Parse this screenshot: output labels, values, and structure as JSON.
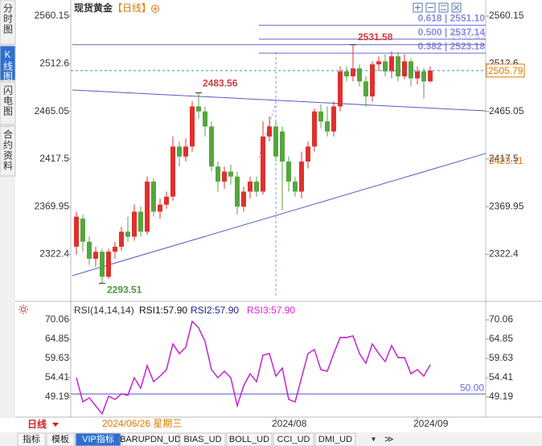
{
  "ui": {
    "sidebar": [
      "分时图",
      "K线图",
      "闪电图",
      "合约资料"
    ],
    "active_sidebar": 1,
    "period_button": "日线",
    "crosshair_date": "2024/06/26 星期三",
    "tabs": [
      "指标",
      "模板",
      "VIP指标",
      "BARUPDN_UD",
      "BIAS_UD",
      "BOLL_UD",
      "CCI_UD",
      "DMI_UD"
    ],
    "active_tab": 2
  },
  "chart_data": [
    {
      "type": "candlestick",
      "title": "现货黄金",
      "subtitle": "【日线】",
      "categories": [
        null,
        null,
        null,
        null,
        null,
        null,
        null,
        null,
        null,
        null,
        null,
        null,
        null,
        null,
        null,
        null,
        null,
        null,
        null,
        null,
        null,
        null,
        null,
        null,
        null,
        null,
        null,
        null,
        null,
        null,
        null,
        "2024/08",
        null,
        null,
        null,
        null,
        null,
        null,
        null,
        null,
        null,
        null,
        null,
        null,
        null,
        null,
        null,
        null,
        null,
        null,
        null,
        null,
        null,
        "2024/09",
        null,
        null
      ],
      "open": [
        2330,
        2358,
        2335,
        2318,
        2325,
        2300,
        2325,
        2330,
        2345,
        2340,
        2365,
        2345,
        2395,
        2365,
        2372,
        2380,
        2430,
        2420,
        2430,
        2470,
        2465,
        2450,
        2410,
        2395,
        2405,
        2400,
        2370,
        2385,
        2395,
        2385,
        2440,
        2450,
        2445,
        2415,
        2395,
        2385,
        2415,
        2430,
        2465,
        2455,
        2445,
        2470,
        2505,
        2500,
        2508,
        2495,
        2480,
        2512,
        2515,
        2505,
        2520,
        2500,
        2515,
        2498,
        2505,
        2495
      ],
      "high": [
        2365,
        2362,
        2340,
        2330,
        2328,
        2328,
        2335,
        2350,
        2360,
        2372,
        2370,
        2400,
        2398,
        2378,
        2385,
        2440,
        2435,
        2438,
        2475,
        2483.56,
        2470,
        2455,
        2415,
        2410,
        2412,
        2405,
        2390,
        2400,
        2400,
        2455,
        2460,
        2455,
        2450,
        2420,
        2400,
        2425,
        2435,
        2468,
        2472,
        2470,
        2475,
        2510,
        2510,
        2531.58,
        2512,
        2500,
        2515,
        2520,
        2522,
        2525,
        2524,
        2522,
        2518,
        2510,
        2508,
        2510
      ],
      "low": [
        2322,
        2325,
        2312,
        2310,
        2293.51,
        2298,
        2318,
        2326,
        2335,
        2336,
        2340,
        2342,
        2360,
        2358,
        2368,
        2376,
        2410,
        2415,
        2425,
        2458,
        2440,
        2405,
        2385,
        2388,
        2392,
        2362,
        2365,
        2378,
        2380,
        2382,
        2435,
        2415,
        2366,
        2385,
        2380,
        2378,
        2408,
        2425,
        2448,
        2440,
        2440,
        2465,
        2495,
        2495,
        2490,
        2470,
        2475,
        2505,
        2500,
        2498,
        2495,
        2497,
        2490,
        2492,
        2478,
        2494
      ],
      "close": [
        2360,
        2335,
        2318,
        2325,
        2300,
        2325,
        2330,
        2345,
        2340,
        2365,
        2345,
        2395,
        2365,
        2372,
        2380,
        2430,
        2420,
        2430,
        2470,
        2465,
        2450,
        2410,
        2395,
        2405,
        2400,
        2370,
        2385,
        2395,
        2385,
        2440,
        2450,
        2420,
        2415,
        2395,
        2385,
        2415,
        2430,
        2465,
        2455,
        2445,
        2470,
        2505,
        2500,
        2508,
        2495,
        2480,
        2512,
        2515,
        2505,
        2520,
        2500,
        2515,
        2498,
        2505,
        2495,
        2505.79
      ],
      "up_color": "#e0302e",
      "down_color": "#55a63d",
      "ylim": [
        2279.5,
        2569.8
      ],
      "yticks": [
        2560.15,
        2512.6,
        2465.05,
        2417.5,
        2369.95,
        2322.4
      ],
      "grid": false,
      "fib_levels": [
        {
          "value": 2551.1,
          "label": "0.618 | 2551.10"
        },
        {
          "value": 2537.14,
          "label": "0.500 | 2537.14"
        },
        {
          "value": 2523.18,
          "label": "0.382 | 2523.18"
        }
      ],
      "overlay_values": [
        2532.42
      ],
      "trendline_value": 2423.11
    },
    {
      "type": "line",
      "title": "RSI(14,14,14)",
      "series": [
        {
          "name": "RSI1:57.90",
          "color": "#111111",
          "values": [
            54.41,
            47.89,
            48.97,
            46.8,
            44.63,
            49.41,
            48.54,
            50.06,
            49.63,
            54.41,
            51.58,
            57.67,
            53.32,
            54.84,
            56.58,
            63.54,
            60.93,
            62.67,
            69.63,
            67.89,
            64.19,
            56.58,
            54.41,
            56.15,
            54.41,
            46.8,
            52.23,
            55.49,
            53.32,
            60.49,
            60.93,
            54.84,
            57.02,
            48.54,
            47.89,
            54.41,
            60.93,
            62.02,
            56.58,
            56.15,
            60.93,
            65.28,
            65.28,
            65.71,
            60.93,
            58.32,
            63.54,
            60.93,
            58.76,
            63.1,
            59.84,
            59.84,
            55.49,
            56.58,
            54.84,
            57.9
          ]
        },
        {
          "name": "RSI2:57.90",
          "color": "#1c1c8f",
          "values": [
            54.41,
            47.89,
            48.97,
            46.8,
            44.63,
            49.41,
            48.54,
            50.06,
            49.63,
            54.41,
            51.58,
            57.67,
            53.32,
            54.84,
            56.58,
            63.54,
            60.93,
            62.67,
            69.63,
            67.89,
            64.19,
            56.58,
            54.41,
            56.15,
            54.41,
            46.8,
            52.23,
            55.49,
            53.32,
            60.49,
            60.93,
            54.84,
            57.02,
            48.54,
            47.89,
            54.41,
            60.93,
            62.02,
            56.58,
            56.15,
            60.93,
            65.28,
            65.28,
            65.71,
            60.93,
            58.32,
            63.54,
            60.93,
            58.76,
            63.1,
            59.84,
            59.84,
            55.49,
            56.58,
            54.84,
            57.9
          ]
        },
        {
          "name": "RSI3:57.90",
          "color": "#e020e0",
          "values": [
            54.41,
            47.89,
            48.97,
            46.8,
            44.63,
            49.41,
            48.54,
            50.06,
            49.63,
            54.41,
            51.58,
            57.67,
            53.32,
            54.84,
            56.58,
            63.54,
            60.93,
            62.67,
            69.63,
            67.89,
            64.19,
            56.58,
            54.41,
            56.15,
            54.41,
            46.8,
            52.23,
            55.49,
            53.32,
            60.49,
            60.93,
            54.84,
            57.02,
            48.54,
            47.89,
            54.41,
            60.93,
            62.02,
            56.58,
            56.15,
            60.93,
            65.28,
            65.28,
            65.71,
            60.93,
            58.32,
            63.54,
            60.93,
            58.76,
            63.1,
            59.84,
            59.84,
            55.49,
            56.58,
            54.84,
            57.9
          ]
        }
      ],
      "ylim": [
        44.2,
        71.8
      ],
      "yticks": [
        70.06,
        64.85,
        59.63,
        54.41,
        49.19
      ],
      "levels": [
        {
          "value": 50,
          "label": "50.00"
        }
      ]
    }
  ]
}
